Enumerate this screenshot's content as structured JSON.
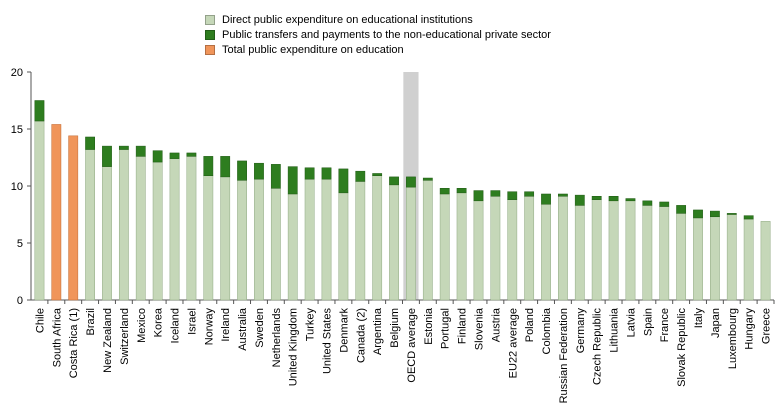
{
  "chart_data": {
    "type": "bar",
    "stacked": true,
    "ylim": [
      0,
      20
    ],
    "yticks": [
      0,
      5,
      10,
      15,
      20
    ],
    "grid": false,
    "legend_position": "top",
    "highlight_category": "OECD average",
    "categories": [
      "Chile",
      "South Africa",
      "Costa Rica (1)",
      "Brazil",
      "New Zealand",
      "Switzerland",
      "Mexico",
      "Korea",
      "Iceland",
      "Israel",
      "Norway",
      "Ireland",
      "Australia",
      "Sweden",
      "Netherlands",
      "United Kingdom",
      "Turkey",
      "United States",
      "Denmark",
      "Canada (2)",
      "Argentina",
      "Belgium",
      "OECD average",
      "Estonia",
      "Portugal",
      "Finland",
      "Slovenia",
      "Austria",
      "EU22 average",
      "Poland",
      "Colombia",
      "Russian Federation",
      "Germany",
      "Czech Republic",
      "Lithuania",
      "Latvia",
      "Spain",
      "France",
      "Slovak Republic",
      "Italy",
      "Japan",
      "Luxembourg",
      "Hungary",
      "Greece"
    ],
    "series": [
      {
        "name": "Direct public expenditure on educational institutions",
        "color": "#c5d7b8",
        "values": [
          15.7,
          null,
          null,
          13.2,
          11.7,
          13.2,
          12.6,
          12.1,
          12.4,
          12.6,
          10.9,
          10.8,
          10.5,
          10.6,
          9.8,
          9.3,
          10.6,
          10.6,
          9.4,
          10.4,
          10.9,
          10.1,
          9.9,
          10.5,
          9.3,
          9.4,
          8.7,
          9.1,
          8.8,
          9.1,
          8.4,
          9.1,
          8.3,
          8.8,
          8.7,
          8.7,
          8.3,
          8.2,
          7.6,
          7.2,
          7.3,
          7.5,
          7.1,
          6.9
        ]
      },
      {
        "name": "Public transfers and payments to the non-educational private sector",
        "color": "#2e7d1f",
        "values": [
          1.8,
          null,
          null,
          1.1,
          1.8,
          0.3,
          0.9,
          1.0,
          0.5,
          0.3,
          1.7,
          1.8,
          1.7,
          1.4,
          2.1,
          2.4,
          1.0,
          1.0,
          2.1,
          0.9,
          0.2,
          0.7,
          0.9,
          0.2,
          0.5,
          0.4,
          0.9,
          0.5,
          0.7,
          0.4,
          0.9,
          0.2,
          0.9,
          0.3,
          0.4,
          0.2,
          0.4,
          0.4,
          0.7,
          0.7,
          0.5,
          0.1,
          0.3,
          0.0
        ]
      },
      {
        "name": "Total public expenditure on education",
        "color": "#f0955a",
        "values": [
          null,
          15.4,
          14.4,
          null,
          null,
          null,
          null,
          null,
          null,
          null,
          null,
          null,
          null,
          null,
          null,
          null,
          null,
          null,
          null,
          null,
          null,
          null,
          null,
          null,
          null,
          null,
          null,
          null,
          null,
          null,
          null,
          null,
          null,
          null,
          null,
          null,
          null,
          null,
          null,
          null,
          null,
          null,
          null,
          null
        ]
      }
    ]
  }
}
